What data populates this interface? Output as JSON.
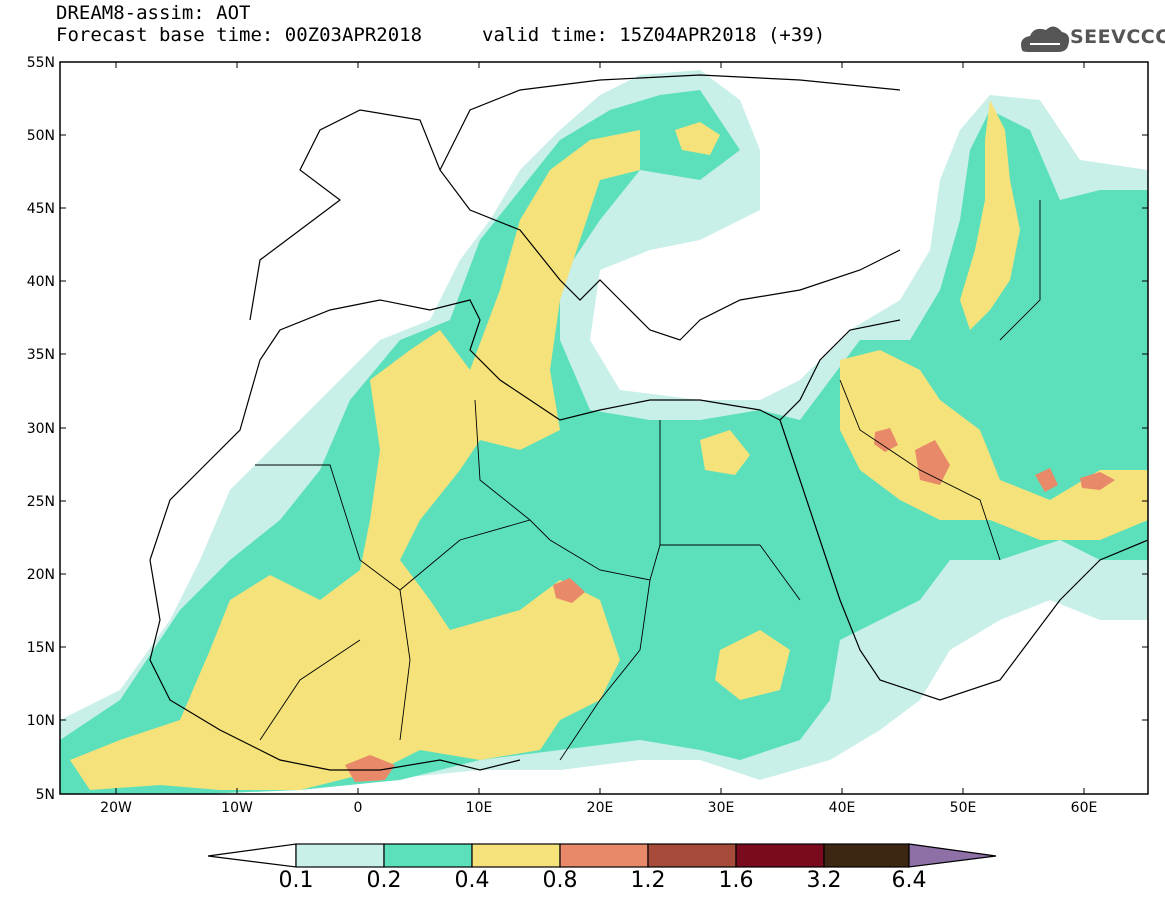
{
  "title": {
    "line1": "DREAM8-assim: AOT",
    "line2": "Forecast base time: 00Z03APR2018",
    "valid": "valid time: 15Z04APR2018 (+39)"
  },
  "logo": {
    "text": "SEEVCCC",
    "icon": "cloud-logo-icon"
  },
  "map": {
    "lat_labels": [
      "55N",
      "50N",
      "45N",
      "40N",
      "35N",
      "30N",
      "25N",
      "20N",
      "15N",
      "10N",
      "5N"
    ],
    "lon_labels": [
      "20W",
      "10W",
      "0",
      "10E",
      "20E",
      "30E",
      "40E",
      "50E",
      "60E"
    ],
    "lon_range": [
      -25,
      65
    ],
    "lat_range": [
      5,
      55
    ]
  },
  "colorbar": {
    "labels": [
      "0.1",
      "0.2",
      "0.4",
      "0.8",
      "1.2",
      "1.6",
      "3.2",
      "6.4"
    ],
    "colors": [
      "#ffffff",
      "#c9efe9",
      "#5ce0bc",
      "#f5e27a",
      "#e8896a",
      "#a64a3a",
      "#7a0a1e",
      "#3d2612",
      "#8e6fa6"
    ]
  }
}
